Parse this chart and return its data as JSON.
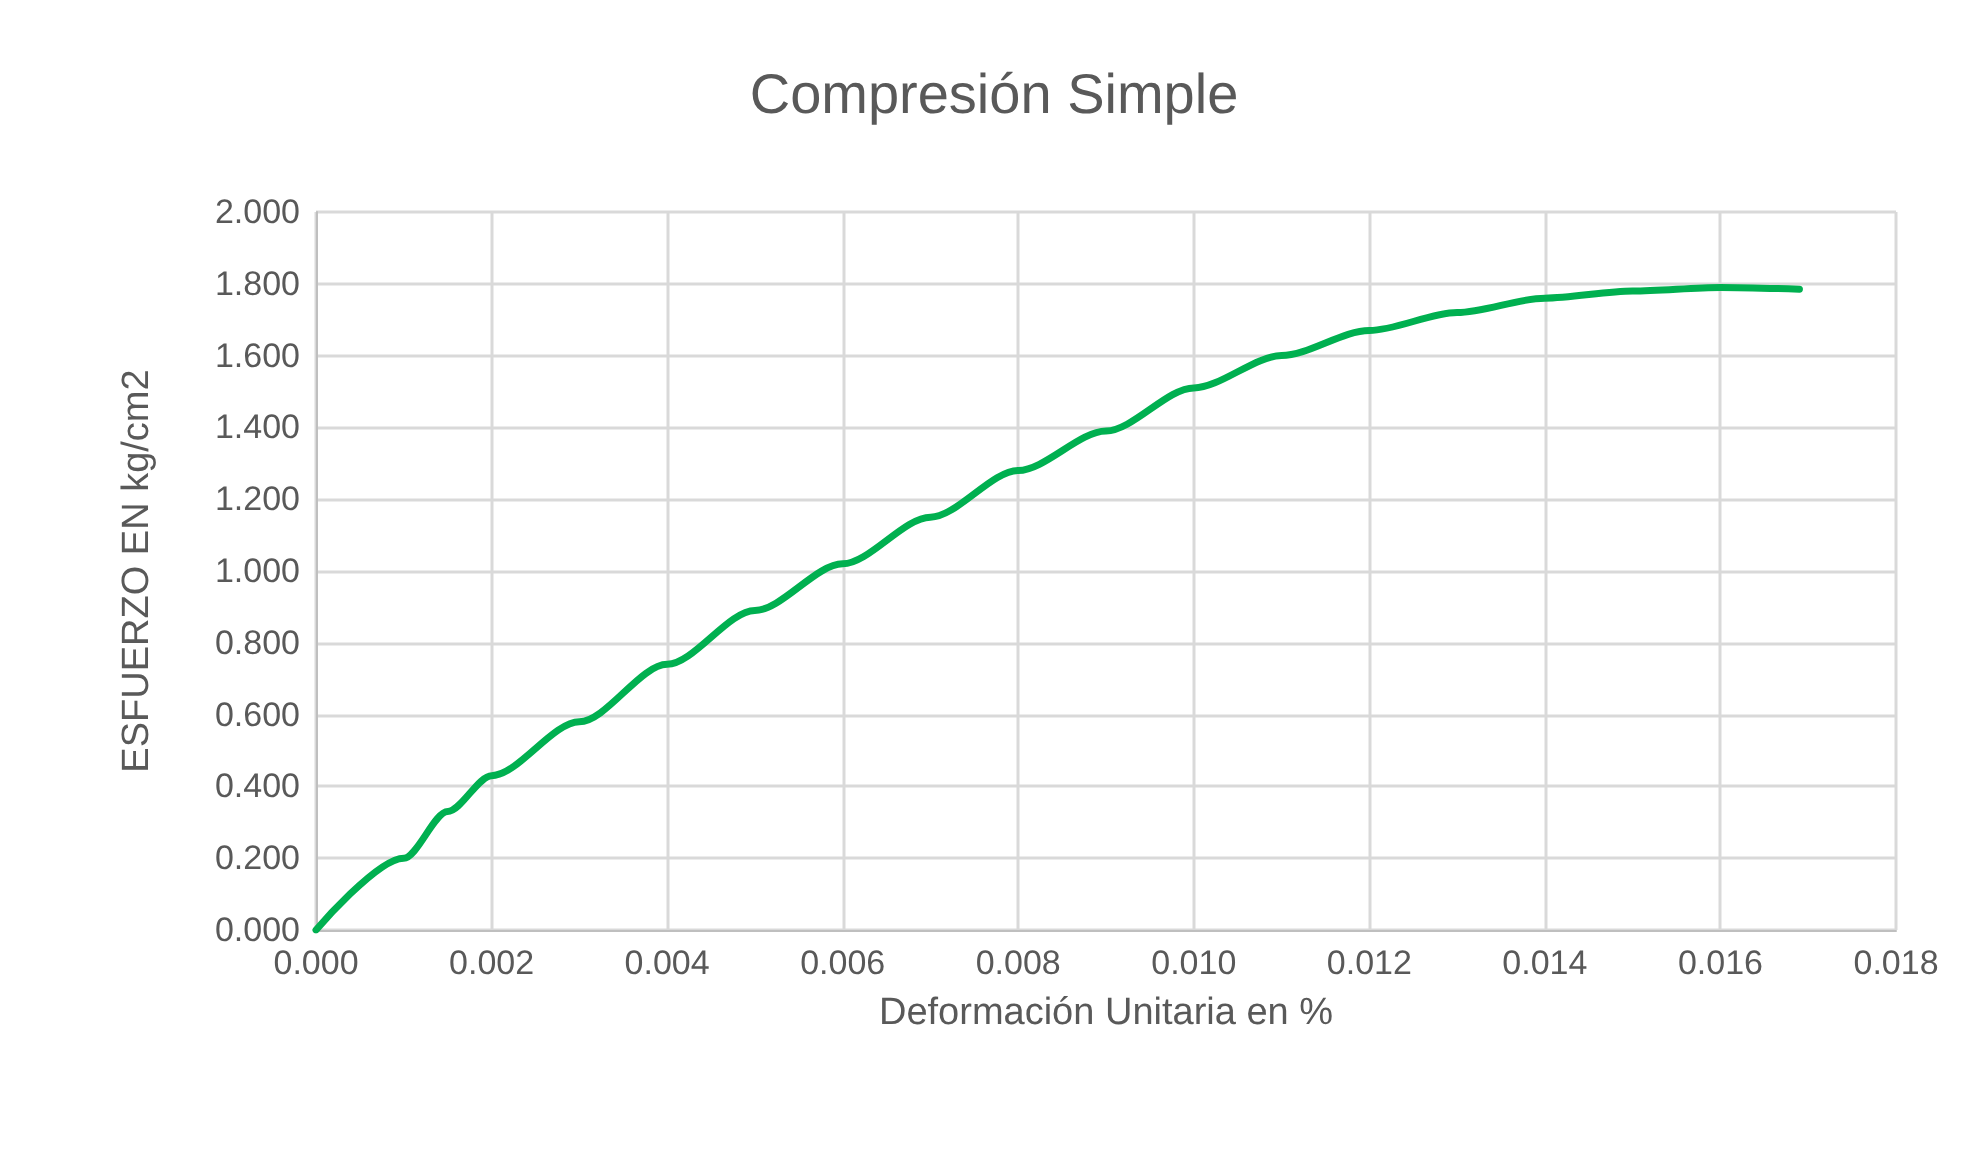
{
  "chart_data": {
    "type": "line",
    "title": "Compresión Simple",
    "xlabel": "Deformación Unitaria en %",
    "ylabel": "ESFUERZO EN kg/cm2",
    "x": [
      0,
      0.001,
      0.0015,
      0.002,
      0.003,
      0.004,
      0.005,
      0.006,
      0.007,
      0.008,
      0.009,
      0.01,
      0.011,
      0.012,
      0.013,
      0.014,
      0.015,
      0.016,
      0.0169
    ],
    "series": [
      {
        "color": "#00b050",
        "values": [
          0,
          0.2,
          0.33,
          0.43,
          0.58,
          0.74,
          0.89,
          1.02,
          1.15,
          1.28,
          1.39,
          1.51,
          1.6,
          1.67,
          1.72,
          1.76,
          1.78,
          1.79,
          1.785
        ]
      }
    ],
    "xlim": [
      0,
      0.018
    ],
    "xticks": [
      {
        "value": 0,
        "label": "0.000"
      },
      {
        "value": 0.002,
        "label": "0.002"
      },
      {
        "value": 0.004,
        "label": "0.004"
      },
      {
        "value": 0.006,
        "label": "0.006"
      },
      {
        "value": 0.008,
        "label": "0.008"
      },
      {
        "value": 0.01,
        "label": "0.010"
      },
      {
        "value": 0.012,
        "label": "0.012"
      },
      {
        "value": 0.014,
        "label": "0.014"
      },
      {
        "value": 0.016,
        "label": "0.016"
      },
      {
        "value": 0.018,
        "label": "0.018"
      }
    ],
    "ylim": [
      0,
      2
    ],
    "yticks": [
      {
        "value": 0,
        "label": "0.000"
      },
      {
        "value": 0.2,
        "label": "0.200"
      },
      {
        "value": 0.4,
        "label": "0.400"
      },
      {
        "value": 0.6,
        "label": "0.600"
      },
      {
        "value": 0.8,
        "label": "0.800"
      },
      {
        "value": 1,
        "label": "1.000"
      },
      {
        "value": 1.2,
        "label": "1.200"
      },
      {
        "value": 1.4,
        "label": "1.400"
      },
      {
        "value": 1.6,
        "label": "1.600"
      },
      {
        "value": 1.8,
        "label": "1.800"
      },
      {
        "value": 2,
        "label": "2.000"
      }
    ],
    "grid": true,
    "marker": "none",
    "line_style": "solid"
  }
}
